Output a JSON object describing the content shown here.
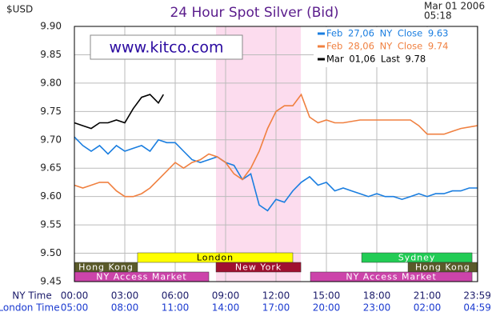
{
  "chart_data": {
    "type": "line",
    "title": "24 Hour Spot Silver (Bid)",
    "y_unit": "$USD",
    "date": "Mar 01 2006",
    "time": "05:18",
    "site": "www.kitco.com",
    "x_axis_label": "NY Time",
    "x2_axis_label": "London Time",
    "xlim": [
      0,
      24
    ],
    "xticks": [
      {
        "value": 0,
        "label": "00:00"
      },
      {
        "value": 3,
        "label": "03:00"
      },
      {
        "value": 6,
        "label": "06:00"
      },
      {
        "value": 9,
        "label": "09:00"
      },
      {
        "value": 12,
        "label": "12:00"
      },
      {
        "value": 15,
        "label": "15:00"
      },
      {
        "value": 18,
        "label": "18:00"
      },
      {
        "value": 21,
        "label": "21:00"
      },
      {
        "value": 23.983,
        "label": "23:59"
      }
    ],
    "x2tick_labels": [
      "05:00",
      "08:00",
      "11:00",
      "14:00",
      "17:00",
      "20:00",
      "23:00",
      "02:00",
      "04:59"
    ],
    "ylim": [
      9.45,
      9.9
    ],
    "yticks": [
      9.45,
      {
        "value": 9.5,
        "label": "9.50"
      },
      9.55,
      {
        "value": 9.6,
        "label": "9.60"
      },
      9.65,
      {
        "value": 9.7,
        "label": "9.70"
      },
      9.75,
      {
        "value": 9.8,
        "label": "9.80"
      },
      9.85,
      {
        "value": 9.9,
        "label": "9.90"
      }
    ],
    "grid": true,
    "shaded_range": [
      8.43,
      13.48
    ],
    "shaded_color": "#fcdcee",
    "market_bands": [
      {
        "name": "London",
        "color": "#ffff00",
        "text_color": "#000000",
        "row": 0,
        "start": 3.76,
        "end": 13.0
      },
      {
        "name": "Sydney",
        "color": "#22cc55",
        "text_color": "#ffffff",
        "row": 0,
        "start": 17.1,
        "end": 23.67
      },
      {
        "name": "Hong Kong",
        "color": "#5a5a2a",
        "text_color": "#ffffff",
        "row": 1,
        "start": 0,
        "end": 3.76
      },
      {
        "name": "New York",
        "color": "#a01030",
        "text_color": "#ffffff",
        "row": 1,
        "start": 8.43,
        "end": 13.48
      },
      {
        "name": "Hong Kong",
        "color": "#5a5a2a",
        "text_color": "#ffffff",
        "row": 1,
        "start": 19.86,
        "end": 23.983
      },
      {
        "name": "NY Access Market",
        "color": "#cc44aa",
        "text_color": "#ffffff",
        "row": 2,
        "start": 0,
        "end": 8.0
      },
      {
        "name": "NY Access Market",
        "color": "#cc44aa",
        "text_color": "#ffffff",
        "row": 2,
        "start": 14.05,
        "end": 23.67
      }
    ],
    "series": [
      {
        "name": "Feb 27,06 NY Close 9.63",
        "color": "#1a7ee0",
        "x": [
          0,
          0.5,
          1,
          1.5,
          2,
          2.5,
          3,
          3.5,
          4,
          4.5,
          5,
          5.5,
          6,
          6.5,
          7,
          7.5,
          8,
          8.5,
          9,
          9.5,
          10,
          10.5,
          11,
          11.5,
          12,
          12.5,
          13,
          13.5,
          14,
          14.5,
          15,
          15.5,
          16,
          16.5,
          17,
          17.5,
          18,
          18.5,
          19,
          19.5,
          20,
          20.5,
          21,
          21.5,
          22,
          22.5,
          23,
          23.5,
          23.983
        ],
        "values": [
          9.705,
          9.69,
          9.68,
          9.69,
          9.675,
          9.69,
          9.68,
          9.685,
          9.69,
          9.68,
          9.7,
          9.695,
          9.695,
          9.68,
          9.665,
          9.66,
          9.665,
          9.67,
          9.66,
          9.655,
          9.63,
          9.64,
          9.585,
          9.575,
          9.595,
          9.59,
          9.61,
          9.625,
          9.635,
          9.62,
          9.625,
          9.61,
          9.615,
          9.61,
          9.605,
          9.6,
          9.605,
          9.6,
          9.6,
          9.595,
          9.6,
          9.605,
          9.6,
          9.605,
          9.605,
          9.61,
          9.61,
          9.615,
          9.615
        ]
      },
      {
        "name": "Feb 28,06 NY Close 9.74",
        "color": "#f08040",
        "x": [
          0,
          0.5,
          1,
          1.5,
          2,
          2.5,
          3,
          3.5,
          4,
          4.5,
          5,
          5.5,
          6,
          6.5,
          7,
          7.5,
          8,
          8.5,
          9,
          9.5,
          10,
          10.5,
          11,
          11.5,
          12,
          12.5,
          13,
          13.5,
          14,
          14.5,
          15,
          15.5,
          16,
          17,
          18,
          19,
          20,
          20.5,
          21,
          22,
          22.5,
          23,
          23.983
        ],
        "values": [
          9.62,
          9.615,
          9.62,
          9.625,
          9.625,
          9.61,
          9.6,
          9.6,
          9.605,
          9.615,
          9.63,
          9.645,
          9.66,
          9.65,
          9.66,
          9.665,
          9.675,
          9.67,
          9.66,
          9.64,
          9.63,
          9.65,
          9.68,
          9.72,
          9.75,
          9.76,
          9.76,
          9.78,
          9.74,
          9.73,
          9.735,
          9.73,
          9.73,
          9.735,
          9.735,
          9.735,
          9.735,
          9.725,
          9.71,
          9.71,
          9.715,
          9.72,
          9.725
        ]
      },
      {
        "name": "Mar 01,06 Last 9.78",
        "color": "#000000",
        "x": [
          0,
          0.5,
          1,
          1.5,
          2,
          2.5,
          3,
          3.5,
          4,
          4.5,
          5,
          5.3
        ],
        "values": [
          9.73,
          9.725,
          9.72,
          9.73,
          9.73,
          9.735,
          9.73,
          9.755,
          9.775,
          9.78,
          9.765,
          9.78
        ]
      }
    ]
  }
}
